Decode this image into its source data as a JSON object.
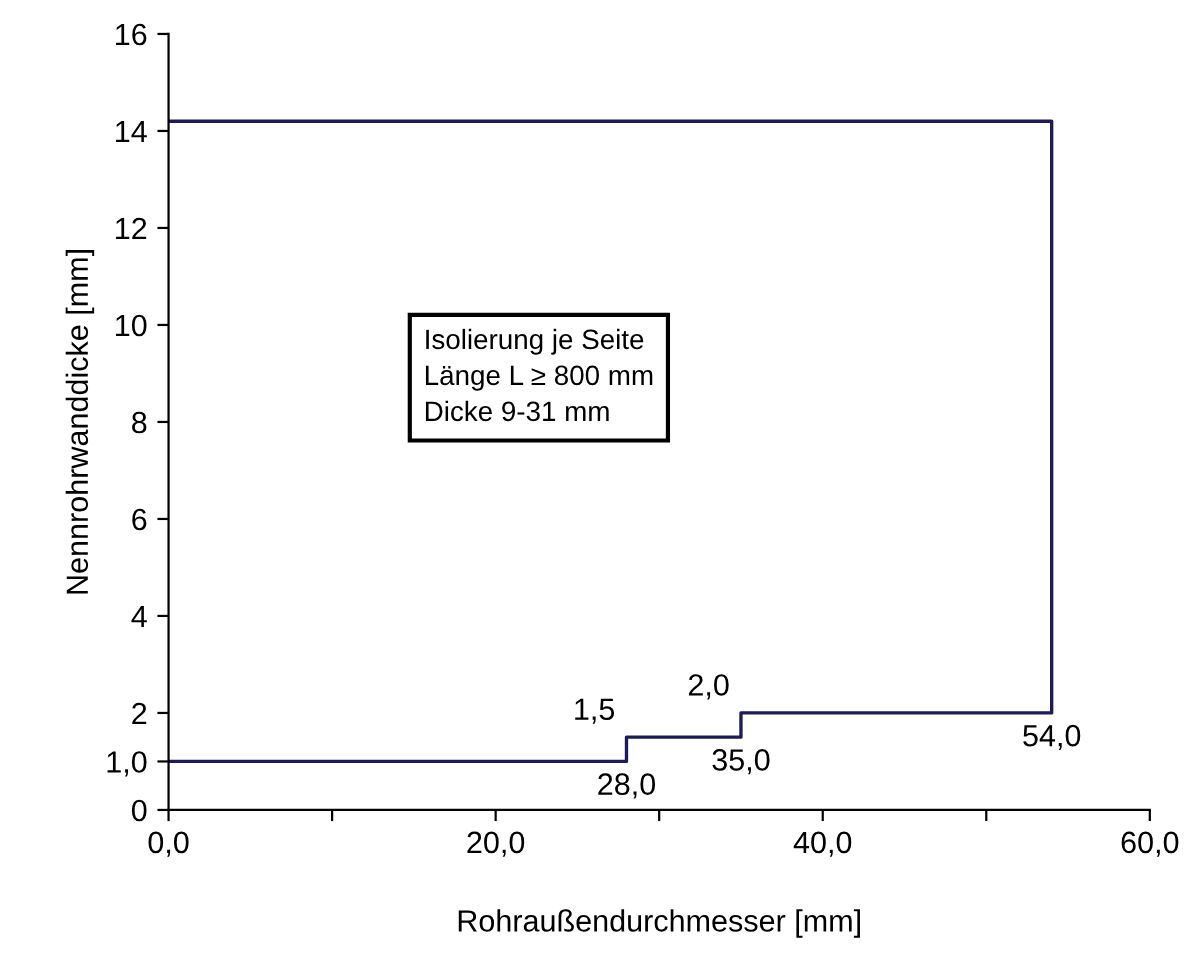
{
  "chart_data": {
    "type": "line",
    "xlabel": "Rohraußendurchmesser [mm]",
    "ylabel": "Nennrohrwanddicke [mm]",
    "series": [
      {
        "color": "#1c1c5c",
        "x": [
          0,
          28,
          28,
          35,
          35,
          54,
          54,
          0
        ],
        "values": [
          1.0,
          1.0,
          1.5,
          1.5,
          2.0,
          2.0,
          14.2,
          14.2
        ]
      }
    ],
    "xlim": [
      0,
      60
    ],
    "ylim": [
      0,
      16
    ],
    "xticks": [
      {
        "value": 0,
        "label": "0,0"
      },
      {
        "value": 10,
        "label": null
      },
      {
        "value": 20,
        "label": "20,0"
      },
      {
        "value": 30,
        "label": null
      },
      {
        "value": 40,
        "label": "40,0"
      },
      {
        "value": 50,
        "label": null
      },
      {
        "value": 60,
        "label": "60,0"
      }
    ],
    "yticks": [
      0,
      {
        "value": 1,
        "label": "1,0"
      },
      2,
      4,
      6,
      8,
      10,
      12,
      14,
      16
    ],
    "annotations": [
      {
        "text": "1,5",
        "x": 28,
        "y": 1.5
      },
      {
        "text": "2,0",
        "x": 35,
        "y": 2.0
      },
      {
        "text": "28,0",
        "x": 28,
        "y": 1.0
      },
      {
        "text": "35,0",
        "x": 35,
        "y": 1.5
      },
      {
        "text": "54,0",
        "x": 54,
        "y": 2.0
      },
      "Isolierung je Seite\nLänge L ≥ 800 mm\nDicke 9-31 mm"
    ],
    "grid": false,
    "legend": false,
    "marker": "none",
    "line_style": "solid"
  }
}
